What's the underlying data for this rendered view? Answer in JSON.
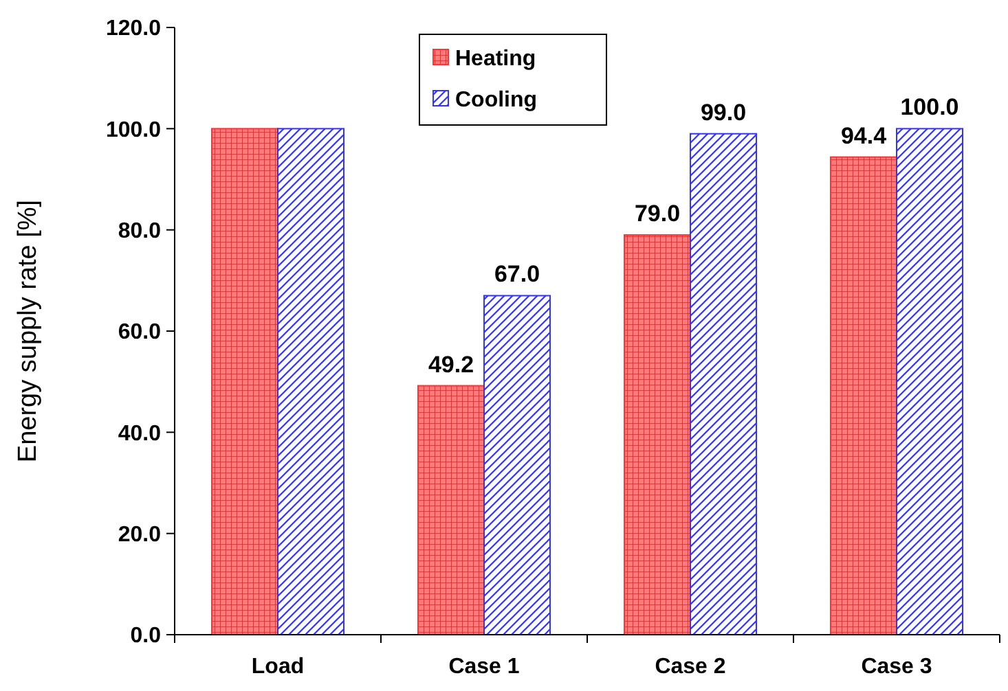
{
  "chart_data": {
    "type": "bar",
    "ylabel": "Energy supply rate  [%]",
    "categories": [
      "Load",
      "Case 1",
      "Case 2",
      "Case 3"
    ],
    "series": [
      {
        "name": "Heating",
        "color": "#ff3333",
        "values": [
          100,
          49.2,
          79.0,
          94.4
        ],
        "value_labels": [
          null,
          "49.2",
          "79.0",
          "94.4"
        ]
      },
      {
        "name": "Cooling",
        "color": "#3333ff",
        "values": [
          100,
          67.0,
          99.0,
          100.0
        ],
        "value_labels": [
          null,
          "67.0",
          "99.0",
          "100.0"
        ]
      }
    ],
    "ylim": [
      0,
      120
    ],
    "yticks": [
      {
        "value": 0,
        "label": "0.0"
      },
      {
        "value": 20,
        "label": "20.0"
      },
      {
        "value": 40,
        "label": "40.0"
      },
      {
        "value": 60,
        "label": "60.0"
      },
      {
        "value": 80,
        "label": "80.0"
      },
      {
        "value": 100,
        "label": "100.0"
      },
      {
        "value": 120,
        "label": "120.0"
      }
    ],
    "legend": "top"
  }
}
